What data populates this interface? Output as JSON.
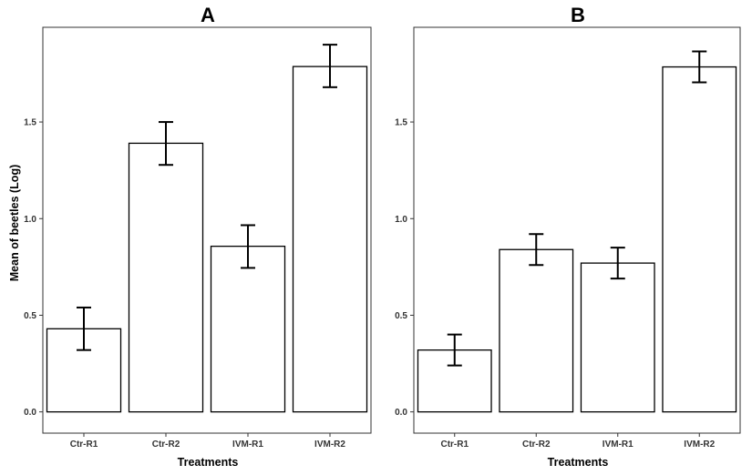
{
  "chart_data": [
    {
      "type": "bar",
      "title": "A",
      "categories": [
        "Ctr-R1",
        "Ctr-R2",
        "IVM-R1",
        "IVM-R2"
      ],
      "values": [
        0.43,
        1.39,
        0.857,
        1.787
      ],
      "error_low": [
        0.32,
        1.278,
        0.745,
        1.68
      ],
      "error_high": [
        0.54,
        1.5,
        0.966,
        1.9
      ],
      "xlabel": "Treatments",
      "ylabel": "Mean of beetles (Log)",
      "ylim": [
        -0.11,
        1.99
      ],
      "yticks": [
        0.0,
        0.5,
        1.0,
        1.5
      ],
      "ytick_labels": [
        "0.0",
        "0.5",
        "1.0",
        "1.5"
      ],
      "grid": false,
      "legend": "none"
    },
    {
      "type": "bar",
      "title": "B",
      "categories": [
        "Ctr-R1",
        "Ctr-R2",
        "IVM-R1",
        "IVM-R2"
      ],
      "values": [
        0.32,
        0.84,
        0.77,
        1.785
      ],
      "error_low": [
        0.24,
        0.76,
        0.69,
        1.705
      ],
      "error_high": [
        0.4,
        0.92,
        0.85,
        1.865
      ],
      "xlabel": "Treatments",
      "ylabel": "",
      "ylim": [
        -0.11,
        1.99
      ],
      "yticks": [
        0.0,
        0.5,
        1.0,
        1.5
      ],
      "ytick_labels": [
        "0.0",
        "0.5",
        "1.0",
        "1.5"
      ],
      "grid": false,
      "legend": "none"
    }
  ]
}
